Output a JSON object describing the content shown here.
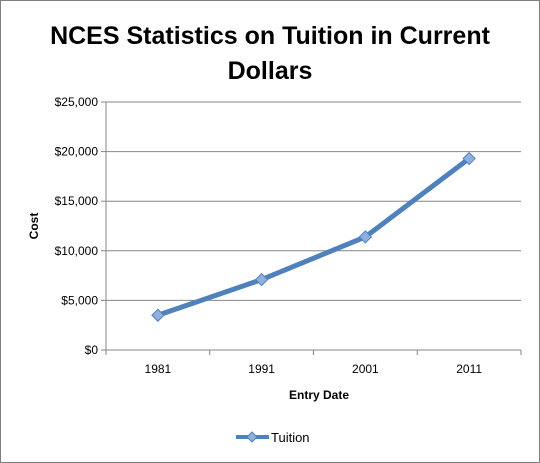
{
  "chart_data": {
    "type": "line",
    "title_lines": [
      "NCES Statistics on Tuition in Current",
      "Dollars"
    ],
    "xlabel": "Entry Date",
    "ylabel": "Cost",
    "categories": [
      "1981",
      "1991",
      "2001",
      "2011"
    ],
    "y_ticks": [
      "$0",
      "$5,000",
      "$10,000",
      "$15,000",
      "$20,000",
      "$25,000"
    ],
    "ylim": [
      0,
      25000
    ],
    "grid": true,
    "legend_position": "bottom",
    "series": [
      {
        "name": "Tuition",
        "color": "#4f81bd",
        "marker": "diamond",
        "values": [
          3500,
          7100,
          11400,
          19300
        ]
      }
    ]
  }
}
